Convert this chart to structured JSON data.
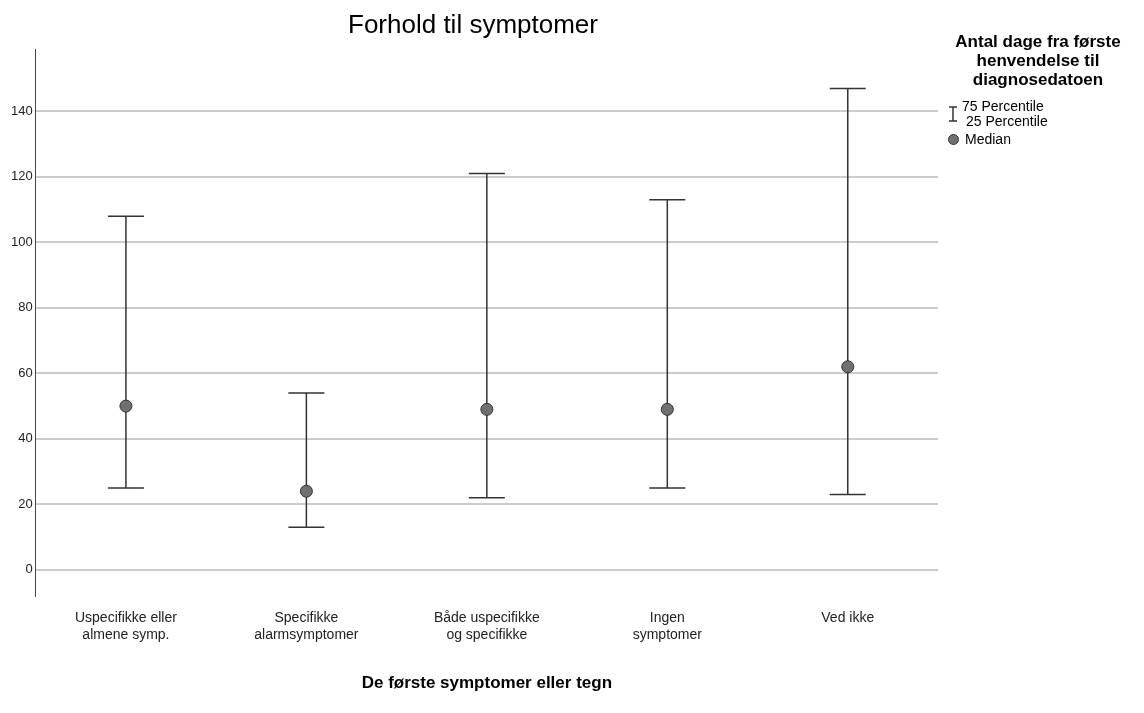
{
  "chart_data": {
    "type": "scatter",
    "title": "Forhold til symptomer",
    "xlabel": "De første symptomer eller tegn",
    "legend_title": "Antal dage fra første henvendelse til diagnosedatoen",
    "categories": [
      "Uspecifikke eller almene symp.",
      "Specifikke alarmsymptomer",
      "Både uspecifikke og specifikke",
      "Ingen symptomer",
      "Ved ikke"
    ],
    "series": [
      {
        "name": "Median",
        "color": "#707070",
        "values": [
          50,
          24,
          49,
          49,
          62
        ],
        "errors": [
          [
            25,
            108
          ],
          [
            13,
            54
          ],
          [
            22,
            121
          ],
          [
            25,
            113
          ],
          [
            23,
            147
          ]
        ]
      }
    ],
    "annotations": [
      "75 Percentile",
      "25 Percentile"
    ],
    "ylim": [
      -8,
      159
    ],
    "yticks": [
      0,
      20,
      40,
      60,
      80,
      100,
      120,
      140
    ],
    "grid": "y",
    "legend": "top right",
    "marker": "circle"
  }
}
